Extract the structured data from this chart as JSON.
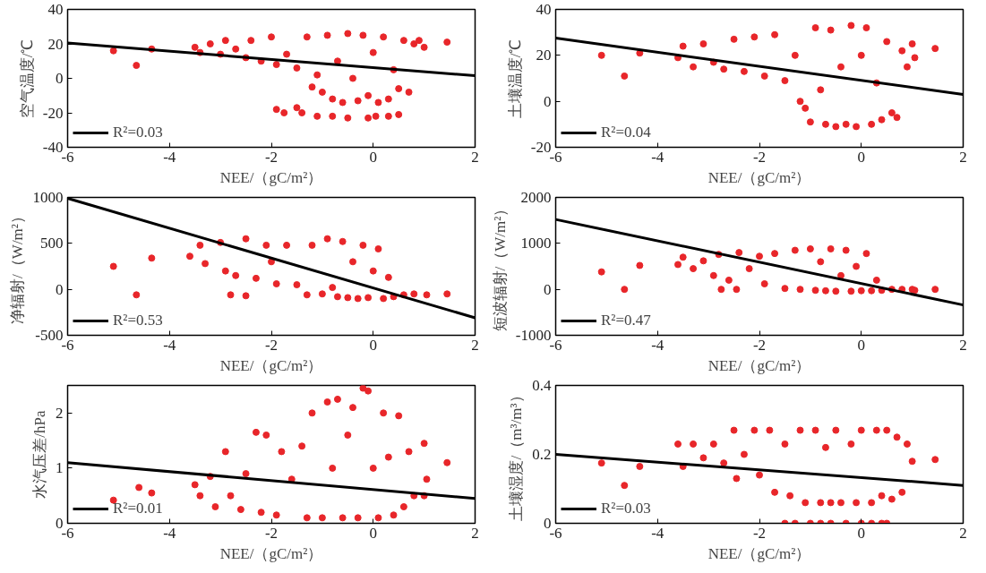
{
  "chart_data": [
    {
      "type": "scatter",
      "xlabel": "NEE/（gC/m²）",
      "ylabel": "空气温度/℃",
      "xlim": [
        -6,
        2
      ],
      "xticks": [
        -6,
        -4,
        -2,
        0,
        2
      ],
      "ylim": [
        -40,
        40
      ],
      "yticks": [
        -40,
        -20,
        0,
        20,
        40
      ],
      "grid": false,
      "legend": "bottom left",
      "series": [
        {
          "marker": "circle",
          "color": "#e8262a",
          "x": [
            -5.1,
            -4.65,
            -4.35,
            1.45,
            -3.5,
            -3.4,
            -3.2,
            -3.0,
            -2.9,
            -2.7,
            -2.5,
            -2.4,
            -2.2,
            -2.0,
            -1.9,
            -1.7,
            -1.5,
            -1.3,
            -1.2,
            -1.1,
            -1.0,
            -0.9,
            -0.8,
            -0.7,
            -0.6,
            -0.5,
            -0.4,
            -0.3,
            -0.2,
            -0.1,
            0.0,
            0.1,
            0.2,
            0.3,
            0.4,
            0.5,
            0.6,
            0.7,
            0.8,
            0.9,
            1.0,
            -1.9,
            -1.75,
            -1.5,
            -1.4,
            -1.1,
            -0.8,
            -0.5,
            -0.1,
            0.05,
            0.3,
            0.5
          ],
          "values": [
            16,
            7.5,
            17,
            21,
            18,
            15,
            20,
            14,
            22,
            17,
            12,
            22,
            10,
            24,
            8,
            14,
            6,
            24,
            -5,
            2,
            -8,
            25,
            -12,
            10,
            -14,
            26,
            0,
            -13,
            25,
            -10,
            15,
            -14,
            24,
            -12,
            5,
            -6,
            22,
            -8,
            20,
            22,
            18,
            -18,
            -20,
            -17,
            -20,
            -22,
            -22,
            -23,
            -23,
            -22,
            -22,
            -21
          ]
        },
        {
          "type": "line",
          "name": "R²=0.03",
          "color": "#000000",
          "x": [
            -6,
            2
          ],
          "values": [
            20.5,
            1.5
          ]
        }
      ]
    },
    {
      "type": "scatter",
      "xlabel": "NEE/（gC/m²）",
      "ylabel": "土壤温度/℃",
      "xlim": [
        -6,
        2
      ],
      "xticks": [
        -6,
        -4,
        -2,
        0,
        2
      ],
      "ylim": [
        -20,
        40
      ],
      "yticks": [
        -20,
        0,
        20,
        40
      ],
      "grid": false,
      "legend": "bottom left",
      "series": [
        {
          "marker": "circle",
          "color": "#e8262a",
          "x": [
            -5.1,
            -4.65,
            -4.35,
            1.45,
            -3.6,
            -3.5,
            -3.3,
            -3.1,
            -2.9,
            -2.7,
            -2.5,
            -2.3,
            -2.1,
            -1.9,
            -1.7,
            -1.5,
            -1.3,
            -1.2,
            -1.1,
            -1.0,
            -0.9,
            -0.8,
            -0.7,
            -0.6,
            -0.5,
            -0.4,
            -0.3,
            -0.2,
            -0.1,
            0.0,
            0.1,
            0.2,
            0.3,
            0.4,
            0.5,
            0.6,
            0.7,
            0.8,
            0.9,
            1.0,
            1.05
          ],
          "values": [
            20,
            11,
            21,
            23,
            19,
            24,
            15,
            25,
            17,
            14,
            27,
            13,
            28,
            11,
            29,
            9,
            20,
            0,
            -3,
            -9,
            32,
            5,
            -10,
            31,
            -11,
            15,
            -10,
            33,
            -11,
            20,
            32,
            -10,
            8,
            -8,
            26,
            -5,
            -7,
            22,
            15,
            25,
            19
          ]
        },
        {
          "type": "line",
          "name": "R²=0.04",
          "color": "#000000",
          "x": [
            -6,
            2
          ],
          "values": [
            27.5,
            3
          ]
        }
      ]
    },
    {
      "type": "scatter",
      "xlabel": "NEE/（gC/m²）",
      "ylabel": "净辐射/（W/m²）",
      "xlim": [
        -6,
        2
      ],
      "xticks": [
        -6,
        -4,
        -2,
        0,
        2
      ],
      "ylim": [
        -500,
        1000
      ],
      "yticks": [
        -500,
        0,
        500,
        1000
      ],
      "grid": false,
      "legend": "bottom left",
      "series": [
        {
          "marker": "circle",
          "color": "#e8262a",
          "x": [
            -5.1,
            -4.65,
            -4.35,
            1.45,
            -2.8,
            -2.5,
            -3.6,
            -3.4,
            -3.3,
            -3.0,
            -2.9,
            -2.7,
            -2.5,
            -2.3,
            -2.1,
            -2.0,
            -1.9,
            -1.7,
            -1.5,
            -1.3,
            -1.2,
            -1.0,
            -0.9,
            -0.8,
            -0.7,
            -0.6,
            -0.5,
            -0.4,
            -0.3,
            -0.2,
            -0.1,
            0.0,
            0.1,
            0.2,
            0.3,
            0.4,
            0.6,
            0.8,
            1.05
          ],
          "values": [
            250,
            -60,
            340,
            -50,
            -60,
            -70,
            360,
            480,
            280,
            510,
            200,
            150,
            550,
            120,
            480,
            300,
            60,
            480,
            50,
            -60,
            480,
            -50,
            550,
            20,
            -80,
            520,
            -90,
            300,
            -100,
            480,
            -90,
            200,
            440,
            -100,
            130,
            -80,
            -60,
            -50,
            -60
          ]
        },
        {
          "type": "line",
          "name": "R²=0.53",
          "color": "#000000",
          "x": [
            -6,
            2
          ],
          "values": [
            990,
            -310
          ]
        }
      ]
    },
    {
      "type": "scatter",
      "xlabel": "NEE/（gC/m²）",
      "ylabel": "短波辐射/（W/m²）",
      "xlim": [
        -6,
        2
      ],
      "xticks": [
        -6,
        -4,
        -2,
        0,
        2
      ],
      "ylim": [
        -1000,
        2000
      ],
      "yticks": [
        -1000,
        0,
        1000,
        2000
      ],
      "grid": false,
      "legend": "bottom left",
      "series": [
        {
          "marker": "circle",
          "color": "#e8262a",
          "x": [
            -5.1,
            -4.65,
            -4.35,
            1.45,
            -2.75,
            -2.45,
            -3.6,
            -3.5,
            -3.3,
            -3.1,
            -2.9,
            -2.8,
            -2.6,
            -2.4,
            -2.2,
            -2.0,
            -1.9,
            -1.7,
            -1.5,
            -1.3,
            -1.2,
            -1.0,
            -0.9,
            -0.8,
            -0.7,
            -0.6,
            -0.5,
            -0.4,
            -0.3,
            -0.2,
            -0.1,
            0.0,
            0.1,
            0.2,
            0.3,
            0.4,
            0.6,
            0.8,
            1.0,
            1.05
          ],
          "values": [
            380,
            0,
            520,
            0,
            0,
            0,
            540,
            700,
            450,
            620,
            300,
            760,
            200,
            800,
            450,
            720,
            120,
            780,
            20,
            850,
            0,
            880,
            -20,
            600,
            -30,
            880,
            -40,
            300,
            850,
            -40,
            500,
            -30,
            780,
            -30,
            200,
            -20,
            0,
            0,
            0,
            -20
          ]
        },
        {
          "type": "line",
          "name": "R²=0.47",
          "color": "#000000",
          "x": [
            -6,
            2
          ],
          "values": [
            1520,
            -340
          ]
        }
      ]
    },
    {
      "type": "scatter",
      "xlabel": "NEE/（gC/m²）",
      "ylabel": "水汽压差/hPa",
      "xlim": [
        -6,
        2
      ],
      "xticks": [
        -6,
        -4,
        -2,
        0,
        2
      ],
      "ylim": [
        0,
        2.5
      ],
      "yticks": [
        0,
        1,
        2
      ],
      "grid": false,
      "legend": "bottom left",
      "series": [
        {
          "marker": "circle",
          "color": "#e8262a",
          "x": [
            -5.1,
            -4.6,
            -4.35,
            1.45,
            -3.5,
            -3.4,
            -3.2,
            -3.1,
            -2.9,
            -2.8,
            -2.6,
            -2.5,
            -2.3,
            -2.2,
            -2.1,
            -1.9,
            -1.8,
            -1.6,
            -1.4,
            -1.3,
            -1.2,
            -1.0,
            -0.9,
            -0.8,
            -0.7,
            -0.6,
            -0.5,
            -0.4,
            -0.3,
            -0.2,
            -0.1,
            0.0,
            0.1,
            0.2,
            0.3,
            0.4,
            0.5,
            0.6,
            0.7,
            0.8,
            1.0,
            1.05,
            1.0
          ],
          "values": [
            0.42,
            0.65,
            0.55,
            1.1,
            0.7,
            0.5,
            0.85,
            0.3,
            1.3,
            0.5,
            0.25,
            0.9,
            1.65,
            0.2,
            1.6,
            0.15,
            1.3,
            0.8,
            1.4,
            0.1,
            2.0,
            0.1,
            2.2,
            1.0,
            2.25,
            0.1,
            1.6,
            2.1,
            0.1,
            2.45,
            2.4,
            1.0,
            0.1,
            2.0,
            1.2,
            0.15,
            1.95,
            0.3,
            1.3,
            0.5,
            1.45,
            0.8,
            0.5
          ]
        },
        {
          "type": "line",
          "name": "R²=0.01",
          "color": "#000000",
          "x": [
            -6,
            2
          ],
          "values": [
            1.1,
            0.45
          ]
        }
      ]
    },
    {
      "type": "scatter",
      "xlabel": "NEE/（gC/m²）",
      "ylabel": "土壤湿度/（m³/m³）",
      "xlim": [
        -6,
        2
      ],
      "xticks": [
        -6,
        -4,
        -2,
        0,
        2
      ],
      "ylim": [
        0,
        0.4
      ],
      "yticks": [
        0,
        0.2,
        0.4
      ],
      "grid": false,
      "legend": "bottom left",
      "series": [
        {
          "marker": "circle",
          "color": "#e8262a",
          "x": [
            -5.1,
            -4.65,
            -4.35,
            1.45,
            -3.6,
            -3.5,
            -3.3,
            -3.1,
            -2.9,
            -2.7,
            -2.5,
            -2.45,
            -2.3,
            -2.1,
            -2.0,
            -1.8,
            -1.7,
            -1.5,
            -1.4,
            -1.2,
            -1.1,
            -0.9,
            -0.8,
            -0.7,
            -0.6,
            -0.5,
            -0.4,
            -0.2,
            -0.1,
            0.0,
            0.2,
            0.3,
            0.4,
            0.5,
            0.6,
            0.7,
            0.8,
            0.9,
            1.0,
            -1.5,
            -1.3,
            -1.0,
            -0.8,
            -0.6,
            -0.3,
            0.0,
            0.2,
            0.4,
            0.5
          ],
          "values": [
            0.175,
            0.11,
            0.165,
            0.185,
            0.23,
            0.165,
            0.23,
            0.19,
            0.23,
            0.175,
            0.27,
            0.13,
            0.2,
            0.27,
            0.14,
            0.27,
            0.09,
            0.23,
            0.08,
            0.27,
            0.06,
            0.27,
            0.06,
            0.22,
            0.06,
            0.27,
            0.06,
            0.23,
            0.06,
            0.27,
            0.06,
            0.27,
            0.08,
            0.27,
            0.07,
            0.25,
            0.09,
            0.23,
            0.18,
            0,
            0,
            0,
            0,
            0,
            0,
            0,
            0,
            0,
            0
          ]
        },
        {
          "type": "line",
          "name": "R²=0.03",
          "color": "#000000",
          "x": [
            -6,
            2
          ],
          "values": [
            0.2,
            0.11
          ]
        }
      ]
    }
  ]
}
